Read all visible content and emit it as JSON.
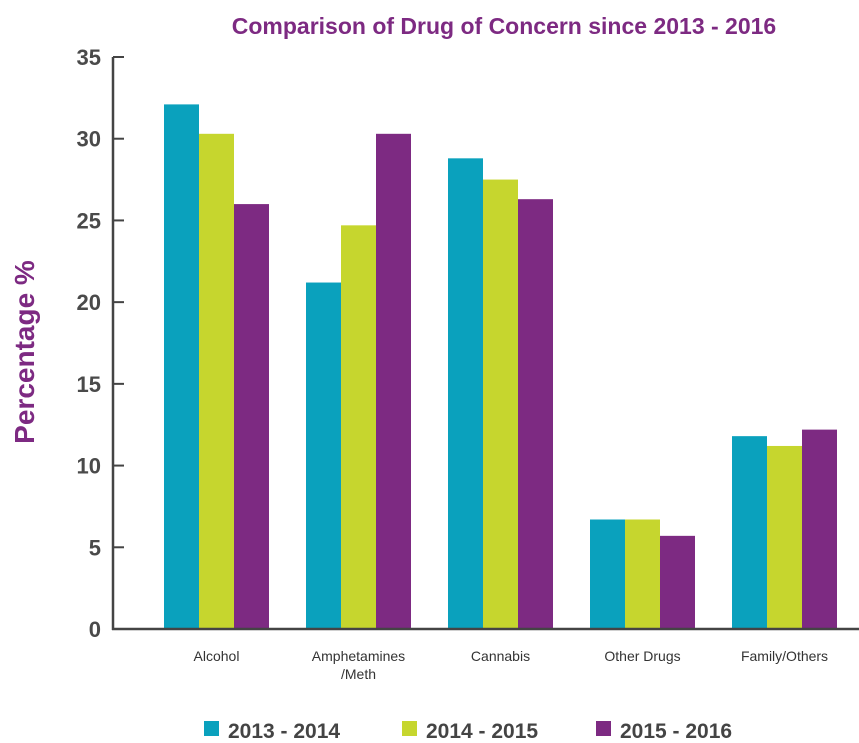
{
  "chart_data": {
    "type": "bar",
    "title": "Comparison of Drug of Concern since 2013 - 2016",
    "xlabel": "",
    "ylabel": "Percentage %",
    "ylim": [
      0,
      35
    ],
    "yticks": [
      0,
      5,
      10,
      15,
      20,
      25,
      30,
      35
    ],
    "grid": false,
    "legend_position": "bottom",
    "categories": [
      [
        "Alcohol"
      ],
      [
        "Amphetamines",
        "/Meth"
      ],
      [
        "Cannabis"
      ],
      [
        "Other Drugs"
      ],
      [
        "Family/Others"
      ]
    ],
    "series": [
      {
        "name": "2013 - 2014",
        "color": "#0aa1bd",
        "values": [
          32.1,
          21.2,
          28.8,
          6.7,
          11.8
        ]
      },
      {
        "name": "2014 - 2015",
        "color": "#c6d62e",
        "values": [
          30.3,
          24.7,
          27.5,
          6.7,
          11.2
        ]
      },
      {
        "name": "2015 - 2016",
        "color": "#7d2a82",
        "values": [
          26.0,
          30.3,
          26.3,
          5.7,
          12.2
        ]
      }
    ]
  }
}
